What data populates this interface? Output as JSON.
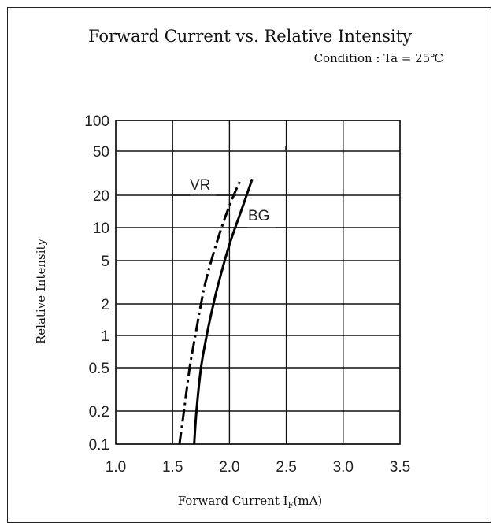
{
  "chart_data": {
    "type": "line",
    "title": "Forward Current vs. Relative Intensity",
    "subtitle": "Condition : Ta = 25℃",
    "xlabel": "Forward Current I",
    "xlabel_sub": "F",
    "xlabel_unit": "(mA)",
    "ylabel": "Relative Intensity",
    "xlim": [
      1.0,
      3.5
    ],
    "ylim": [
      0.1,
      100
    ],
    "yscale": "log",
    "grid": true,
    "x_ticks": [
      1.0,
      1.5,
      2.0,
      2.5,
      3.0,
      3.5
    ],
    "x_tick_labels": [
      "1.0",
      "1.5",
      "2.0",
      "2.5",
      "3.0",
      "3.5"
    ],
    "y_ticks": [
      100,
      50,
      20,
      10,
      5,
      2,
      1,
      0.5,
      0.2,
      0.1
    ],
    "y_tick_labels": [
      "100",
      "50",
      "20",
      "10",
      "5",
      "2",
      "1",
      "0.5",
      "0.2",
      "0.1"
    ],
    "series": [
      {
        "name": "VR",
        "style": "dash-dot",
        "x": [
          1.56,
          1.6,
          1.65,
          1.7,
          1.75,
          1.8,
          1.9,
          2.0,
          2.1
        ],
        "y": [
          0.1,
          0.2,
          0.5,
          1,
          2,
          3.5,
          8,
          16,
          28
        ]
      },
      {
        "name": "BG",
        "style": "solid",
        "x": [
          1.69,
          1.71,
          1.75,
          1.8,
          1.85,
          1.9,
          2.0,
          2.1,
          2.2
        ],
        "y": [
          0.1,
          0.2,
          0.5,
          1,
          1.8,
          3,
          7,
          14,
          28
        ]
      }
    ]
  }
}
